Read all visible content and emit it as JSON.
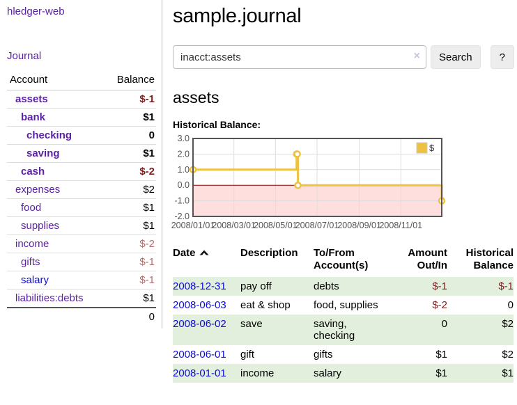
{
  "colors": {
    "link_purple": "#5b21a6",
    "link_blue": "#0b0bdd",
    "negative_strong": "#7f1c1c",
    "negative_soft": "#b26d6d",
    "row_highlight_green": "#e3efdd",
    "chart_line_yellow": "#edc240",
    "chart_negative_fill": "#ffdede",
    "chart_zero_line": "#8b0000",
    "chart_grid": "#dddddd",
    "chart_border": "#545454",
    "chart_text": "#545454"
  },
  "sidebar": {
    "app_title": "hledger-web",
    "journal_label": "Journal",
    "accounts_table": {
      "header_account": "Account",
      "header_balance": "Balance",
      "rows": [
        {
          "name": "assets",
          "balance": "$-1",
          "depth": 0,
          "bold": true,
          "link": "purple",
          "balance_style": "strong"
        },
        {
          "name": "bank",
          "balance": "$1",
          "depth": 1,
          "bold": true,
          "link": "purple",
          "balance_style": "default"
        },
        {
          "name": "checking",
          "balance": "0",
          "depth": 2,
          "bold": true,
          "link": "purple",
          "balance_style": "default"
        },
        {
          "name": "saving",
          "balance": "$1",
          "depth": 2,
          "bold": true,
          "link": "purple",
          "balance_style": "default"
        },
        {
          "name": "cash",
          "balance": "$-2",
          "depth": 1,
          "bold": true,
          "link": "purple",
          "balance_style": "strong"
        },
        {
          "name": "expenses",
          "balance": "$2",
          "depth": 0,
          "bold": false,
          "link": "purple",
          "balance_style": "default"
        },
        {
          "name": "food",
          "balance": "$1",
          "depth": 1,
          "bold": false,
          "link": "purple",
          "balance_style": "default"
        },
        {
          "name": "supplies",
          "balance": "$1",
          "depth": 1,
          "bold": false,
          "link": "purple",
          "balance_style": "default"
        },
        {
          "name": "income",
          "balance": "$-2",
          "depth": 0,
          "bold": false,
          "link": "purple",
          "balance_style": "soft"
        },
        {
          "name": "gifts",
          "balance": "$-1",
          "depth": 1,
          "bold": false,
          "link": "purple",
          "balance_style": "soft"
        },
        {
          "name": "salary",
          "balance": "$-1",
          "depth": 1,
          "bold": false,
          "link": "blue",
          "balance_style": "soft"
        },
        {
          "name": "liabilities:debts",
          "balance": "$1",
          "depth": 0,
          "bold": false,
          "link": "purple",
          "balance_style": "default"
        }
      ],
      "total": "0"
    }
  },
  "header": {
    "title": "sample.journal"
  },
  "search": {
    "query": "inacct:assets",
    "clear_icon": "×",
    "search_button_label": "Search",
    "help_button_label": "?"
  },
  "account_page": {
    "heading": "assets",
    "chart_label": "Historical Balance:"
  },
  "chart_data": {
    "type": "line",
    "title": "Historical Balance",
    "step": true,
    "x_range": [
      "2008-01-01",
      "2008-12-31"
    ],
    "x_ticks": [
      "2008/01/01",
      "2008/03/01",
      "2008/05/01",
      "2008/07/01",
      "2008/09/01",
      "2008/11/01"
    ],
    "y_ticks": [
      3.0,
      2.0,
      1.0,
      0.0,
      -1.0,
      -2.0
    ],
    "ylim": [
      -2,
      3
    ],
    "grid": true,
    "legend_position": "top-right",
    "series": [
      {
        "name": "$",
        "points": [
          {
            "x": "2008-01-01",
            "y": 1
          },
          {
            "x": "2008-06-01",
            "y": 2
          },
          {
            "x": "2008-06-02",
            "y": 2
          },
          {
            "x": "2008-06-03",
            "y": 0
          },
          {
            "x": "2008-12-31",
            "y": -1
          }
        ]
      }
    ]
  },
  "register_table": {
    "headers": {
      "date": "Date",
      "description": "Description",
      "accounts": "To/From Account(s)",
      "amount": "Amount Out/In",
      "balance": "Historical Balance"
    },
    "rows": [
      {
        "date": "2008-12-31",
        "description": "pay off",
        "accounts": "debts",
        "amount": "$-1",
        "balance": "$-1",
        "highlight": true
      },
      {
        "date": "2008-06-03",
        "description": "eat & shop",
        "accounts": "food, supplies",
        "amount": "$-2",
        "balance": "0",
        "highlight": false
      },
      {
        "date": "2008-06-02",
        "description": "save",
        "accounts": "saving, checking",
        "amount": "0",
        "balance": "$2",
        "highlight": true
      },
      {
        "date": "2008-06-01",
        "description": "gift",
        "accounts": "gifts",
        "amount": "$1",
        "balance": "$2",
        "highlight": false
      },
      {
        "date": "2008-01-01",
        "description": "income",
        "accounts": "salary",
        "amount": "$1",
        "balance": "$1",
        "highlight": true
      }
    ]
  }
}
